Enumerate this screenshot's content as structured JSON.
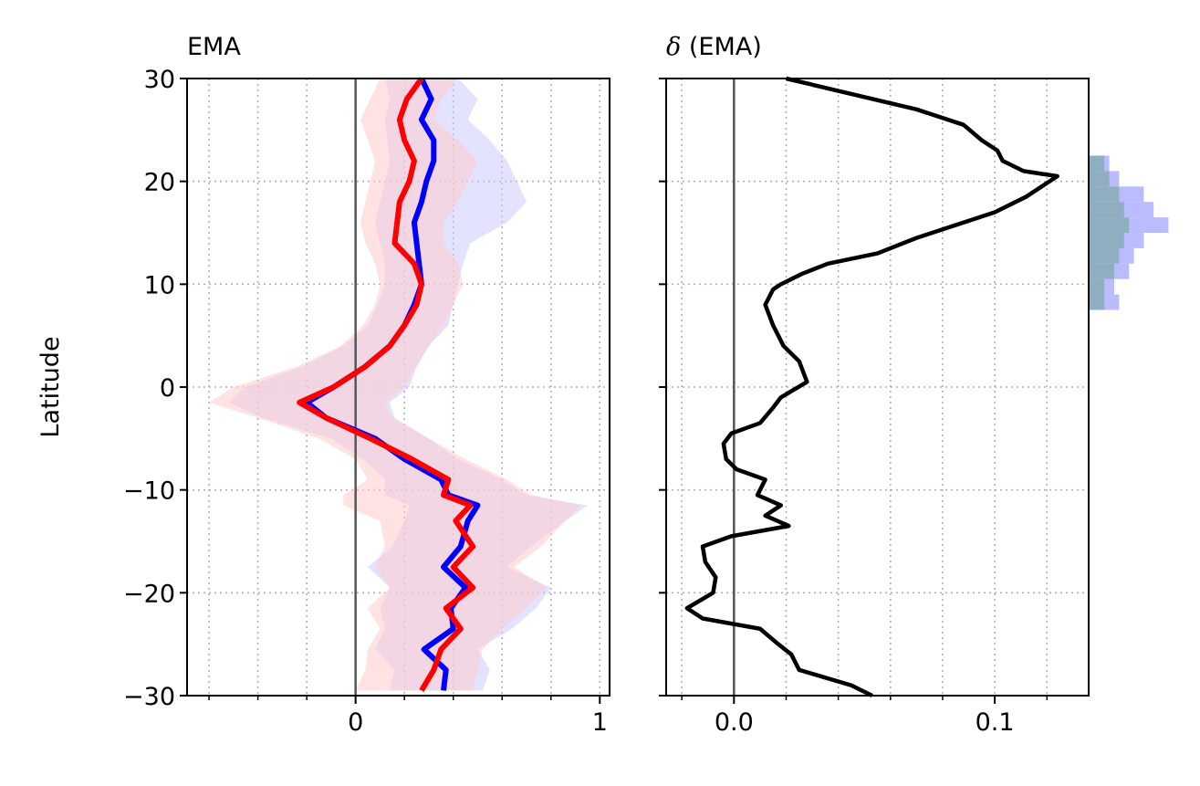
{
  "chart_data": [
    {
      "type": "line",
      "title": "EMA",
      "xlabel": "",
      "ylabel": "Latitude",
      "xlim": [
        -0.69,
        1.04
      ],
      "ylim": [
        -30,
        30
      ],
      "x_ticks": [
        0,
        1
      ],
      "x_tick_labels": [
        "0",
        "1"
      ],
      "y_ticks": [
        -30,
        -20,
        -10,
        0,
        10,
        20,
        30
      ],
      "y_tick_labels": [
        "−30",
        "−20",
        "−10",
        "0",
        "10",
        "20",
        "30"
      ],
      "grid": true,
      "zero_line": 0,
      "series": [
        {
          "color": "#0000ff",
          "band_color": "#ccccff",
          "lat": [
            30,
            28,
            26,
            24,
            22,
            20,
            18,
            16,
            14,
            12,
            10,
            8,
            6,
            4,
            2,
            0,
            -1.5,
            -3,
            -5,
            -7,
            -9,
            -10.5,
            -11.5,
            -13,
            -15.5,
            -17.5,
            -19.5,
            -21.5,
            -23.5,
            -25.5,
            -27.5,
            -29.5
          ],
          "x": [
            0.27,
            0.31,
            0.27,
            0.32,
            0.32,
            0.29,
            0.27,
            0.24,
            0.25,
            0.26,
            0.27,
            0.24,
            0.2,
            0.14,
            0.04,
            -0.09,
            -0.2,
            -0.12,
            0.08,
            0.2,
            0.35,
            0.38,
            0.5,
            0.46,
            0.43,
            0.36,
            0.45,
            0.39,
            0.4,
            0.28,
            0.37,
            0.36
          ],
          "lower": [
            0.12,
            0.14,
            0.12,
            0.13,
            0.14,
            0.12,
            0.1,
            0.08,
            0.1,
            0.12,
            0.12,
            0.09,
            0.05,
            -0.05,
            -0.22,
            -0.45,
            -0.52,
            -0.38,
            -0.1,
            0.03,
            0.12,
            0.12,
            0.22,
            0.2,
            0.15,
            0.05,
            0.14,
            0.1,
            0.12,
            0.08,
            0.16,
            0.14
          ],
          "upper": [
            0.42,
            0.5,
            0.46,
            0.55,
            0.62,
            0.66,
            0.7,
            0.62,
            0.47,
            0.44,
            0.42,
            0.4,
            0.38,
            0.3,
            0.25,
            0.22,
            0.14,
            0.16,
            0.3,
            0.42,
            0.6,
            0.7,
            0.95,
            0.86,
            0.72,
            0.62,
            0.8,
            0.74,
            0.64,
            0.5,
            0.55,
            0.52
          ]
        },
        {
          "color": "#ff0000",
          "band_color": "#ffcccc",
          "lat": [
            30,
            28,
            26,
            24,
            22,
            20,
            18,
            16,
            14,
            12,
            10,
            8,
            6,
            4,
            2,
            0,
            -1.5,
            -3,
            -5,
            -7,
            -9,
            -10.5,
            -11.5,
            -13,
            -15.5,
            -17.5,
            -19.5,
            -21.5,
            -23.5,
            -25.5,
            -27.5,
            -29.5
          ],
          "x": [
            0.27,
            0.21,
            0.18,
            0.2,
            0.24,
            0.22,
            0.18,
            0.17,
            0.16,
            0.24,
            0.27,
            0.25,
            0.2,
            0.14,
            0.04,
            -0.09,
            -0.23,
            -0.12,
            0.06,
            0.23,
            0.38,
            0.36,
            0.47,
            0.41,
            0.48,
            0.4,
            0.48,
            0.37,
            0.43,
            0.35,
            0.32,
            0.27
          ],
          "lower": [
            0.1,
            0.06,
            0.02,
            0.05,
            0.08,
            0.06,
            0.04,
            0.02,
            0.04,
            0.08,
            0.1,
            0.08,
            0.03,
            -0.06,
            -0.24,
            -0.5,
            -0.6,
            -0.4,
            -0.15,
            0.0,
            0.05,
            -0.05,
            -0.05,
            0.1,
            0.12,
            0.08,
            0.14,
            0.05,
            0.1,
            0.05,
            0.04,
            0.0
          ],
          "upper": [
            0.42,
            0.35,
            0.32,
            0.42,
            0.5,
            0.46,
            0.42,
            0.36,
            0.36,
            0.42,
            0.44,
            0.4,
            0.36,
            0.3,
            0.25,
            0.2,
            0.12,
            0.15,
            0.3,
            0.45,
            0.62,
            0.72,
            0.92,
            0.86,
            0.76,
            0.65,
            0.78,
            0.7,
            0.6,
            0.52,
            0.5,
            0.48
          ]
        }
      ]
    },
    {
      "type": "line",
      "title": "δ (EMA)",
      "title_parts": {
        "symbol": "δ",
        "text": " (EMA)"
      },
      "xlabel": "",
      "ylabel": "",
      "xlim": [
        -0.026,
        0.136
      ],
      "ylim": [
        -30,
        30
      ],
      "x_ticks": [
        0.0,
        0.1
      ],
      "x_tick_labels": [
        "0.0",
        "0.1"
      ],
      "grid": true,
      "zero_line": 0,
      "series": [
        {
          "color": "#000000",
          "lat": [
            30,
            28.5,
            27,
            25.5,
            24,
            23,
            22,
            21,
            20.5,
            20,
            18.5,
            17,
            15.5,
            14.5,
            13,
            12,
            11,
            10,
            9.5,
            8,
            6,
            4,
            2.5,
            0.5,
            -1,
            -2,
            -3.5,
            -4.5,
            -5.5,
            -7,
            -8,
            -9,
            -10.5,
            -11.5,
            -12.5,
            -13.5,
            -14.5,
            -15.5,
            -17,
            -18.5,
            -20,
            -21.5,
            -22.5,
            -23.5,
            -25,
            -26,
            -27.5,
            -29,
            -30
          ],
          "x": [
            0.02,
            0.045,
            0.07,
            0.088,
            0.095,
            0.101,
            0.103,
            0.111,
            0.124,
            0.121,
            0.112,
            0.1,
            0.082,
            0.07,
            0.055,
            0.036,
            0.026,
            0.018,
            0.015,
            0.012,
            0.015,
            0.019,
            0.025,
            0.028,
            0.018,
            0.015,
            0.01,
            -0.001,
            -0.004,
            -0.003,
            0.001,
            0.012,
            0.009,
            0.018,
            0.012,
            0.021,
            -0.001,
            -0.012,
            -0.011,
            -0.007,
            -0.008,
            -0.018,
            -0.012,
            0.01,
            0.017,
            0.022,
            0.025,
            0.045,
            0.053
          ]
        }
      ],
      "side_histogram": {
        "lat_edges": [
          7.5,
          9,
          10.5,
          12,
          13.5,
          15,
          16.5,
          18,
          19.5,
          21,
          22.5
        ],
        "counts_a": [
          6,
          5,
          8,
          9,
          11,
          16,
          13,
          11,
          6,
          4
        ],
        "counts_b": [
          3,
          3,
          5,
          6,
          7,
          8,
          7,
          6,
          4,
          3
        ],
        "color_a": "#bbbbff",
        "color_b": "#8fafc0"
      }
    }
  ]
}
